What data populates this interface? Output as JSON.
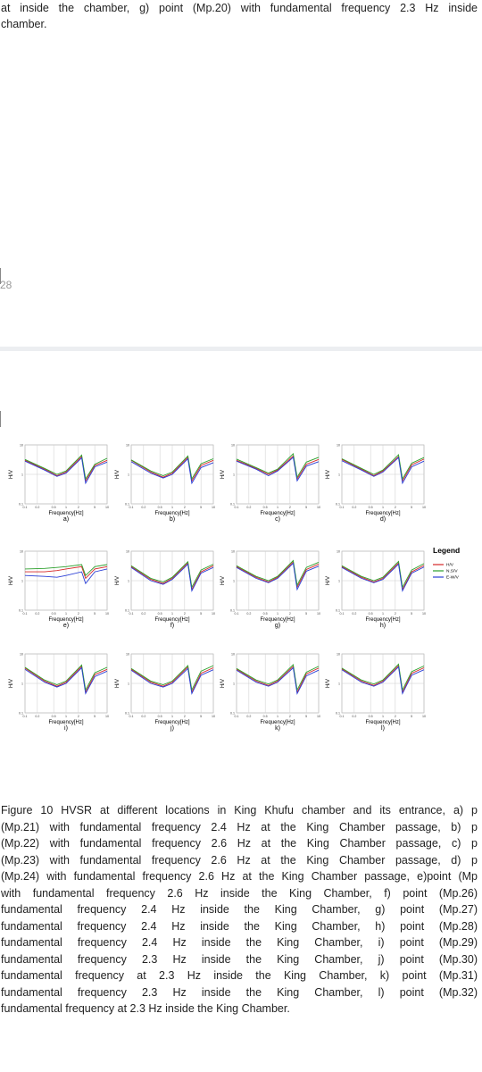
{
  "top_text": [
    "at inside the chamber, g) point (Mp.20) with fundamental frequency 2.3 Hz inside",
    "chamber."
  ],
  "page_number": "28",
  "figure": {
    "x_label": "Frequency[Hz]",
    "y_label": "H/V",
    "log_scale": true,
    "x": [
      0.1,
      0.3,
      0.6,
      1,
      2.4,
      3,
      5,
      10
    ],
    "xlim": [
      0.1,
      10
    ],
    "ylim": [
      0.1,
      10
    ],
    "xticks": [
      0.1,
      0.2,
      0.5,
      1,
      2,
      5,
      10
    ],
    "yticks": [
      0.1,
      1,
      10
    ],
    "legend": {
      "title": "Legend",
      "items": [
        {
          "name": "H/V",
          "color": "#d62728"
        },
        {
          "name": "N.S/V",
          "color": "#2ca02c"
        },
        {
          "name": "E-W/V",
          "color": "#2b3fd6"
        }
      ]
    },
    "panels": [
      {
        "label": "a)",
        "series": [
          [
            3,
            1.5,
            0.9,
            1.2,
            4,
            0.6,
            2,
            3
          ],
          [
            3.2,
            1.6,
            1,
            1.3,
            4.5,
            0.7,
            2.2,
            3.5
          ],
          [
            2.8,
            1.4,
            0.85,
            1.1,
            3.6,
            0.5,
            1.8,
            2.6
          ]
        ]
      },
      {
        "label": "b)",
        "series": [
          [
            3,
            1.2,
            0.8,
            1.1,
            3.8,
            0.6,
            2,
            3
          ],
          [
            3.1,
            1.3,
            0.9,
            1.2,
            4.2,
            0.7,
            2.3,
            3.4
          ],
          [
            2.7,
            1.1,
            0.75,
            1,
            3.4,
            0.5,
            1.7,
            2.5
          ]
        ]
      },
      {
        "label": "c)",
        "series": [
          [
            3,
            1.6,
            1,
            1.4,
            4.2,
            0.7,
            2.2,
            3.2
          ],
          [
            3.3,
            1.7,
            1.1,
            1.5,
            5,
            0.8,
            2.6,
            3.8
          ],
          [
            2.8,
            1.5,
            0.9,
            1.3,
            3.8,
            0.6,
            1.9,
            2.7
          ]
        ]
      },
      {
        "label": "d)",
        "series": [
          [
            3.2,
            1.5,
            0.9,
            1.3,
            4,
            0.6,
            2.1,
            3.3
          ],
          [
            3.4,
            1.6,
            1,
            1.4,
            4.6,
            0.7,
            2.4,
            3.7
          ],
          [
            2.9,
            1.4,
            0.85,
            1.2,
            3.7,
            0.5,
            1.8,
            2.8
          ]
        ]
      },
      {
        "label": "e)",
        "series": [
          [
            2,
            2,
            2.2,
            2.5,
            3,
            1.2,
            2.5,
            3
          ],
          [
            2.5,
            2.6,
            2.8,
            3,
            3.5,
            1.5,
            3,
            3.5
          ],
          [
            1.5,
            1.4,
            1.3,
            1.5,
            2,
            0.8,
            2,
            2.5
          ]
        ]
      },
      {
        "label": "f)",
        "series": [
          [
            3,
            1.1,
            0.8,
            1.2,
            4,
            0.5,
            2,
            3.2
          ],
          [
            3.2,
            1.2,
            0.9,
            1.3,
            4.4,
            0.6,
            2.3,
            3.6
          ],
          [
            2.8,
            1,
            0.75,
            1.1,
            3.6,
            0.45,
            1.8,
            2.8
          ]
        ]
      },
      {
        "label": "g)",
        "series": [
          [
            3,
            1.3,
            0.9,
            1.3,
            4.3,
            0.6,
            2.4,
            3.6
          ],
          [
            3.2,
            1.4,
            1,
            1.4,
            4.8,
            0.7,
            2.8,
            4.2
          ],
          [
            2.8,
            1.2,
            0.85,
            1.2,
            3.9,
            0.5,
            2.1,
            3.1
          ]
        ]
      },
      {
        "label": "h)",
        "series": [
          [
            3,
            1.3,
            0.9,
            1.2,
            4,
            0.5,
            2,
            3.3
          ],
          [
            3.2,
            1.4,
            1,
            1.3,
            4.5,
            0.6,
            2.3,
            3.8
          ],
          [
            2.8,
            1.2,
            0.85,
            1.1,
            3.6,
            0.45,
            1.8,
            2.9
          ]
        ]
      },
      {
        "label": "i)",
        "series": [
          [
            3.3,
            1.2,
            0.8,
            1.1,
            3.8,
            0.5,
            2,
            3
          ],
          [
            3.5,
            1.3,
            0.9,
            1.2,
            4.2,
            0.6,
            2.3,
            3.5
          ],
          [
            3,
            1.1,
            0.75,
            1,
            3.4,
            0.45,
            1.7,
            2.6
          ]
        ]
      },
      {
        "label": "j)",
        "series": [
          [
            3,
            1.1,
            0.8,
            1.1,
            3.6,
            0.5,
            2.2,
            3.4
          ],
          [
            3.2,
            1.2,
            0.9,
            1.2,
            4,
            0.6,
            2.6,
            4
          ],
          [
            2.8,
            1,
            0.75,
            1,
            3.2,
            0.45,
            1.9,
            2.9
          ]
        ]
      },
      {
        "label": "k)",
        "series": [
          [
            3,
            1.2,
            0.85,
            1.2,
            3.8,
            0.5,
            2.1,
            3.3
          ],
          [
            3.2,
            1.3,
            0.95,
            1.3,
            4.3,
            0.6,
            2.4,
            3.8
          ],
          [
            2.8,
            1.1,
            0.8,
            1.1,
            3.4,
            0.45,
            1.8,
            2.8
          ]
        ]
      },
      {
        "label": "l)",
        "series": [
          [
            3.1,
            1.2,
            0.85,
            1.2,
            4,
            0.5,
            2.2,
            3.4
          ],
          [
            3.3,
            1.3,
            0.95,
            1.3,
            4.5,
            0.6,
            2.5,
            3.9
          ],
          [
            2.9,
            1.1,
            0.8,
            1.1,
            3.6,
            0.45,
            1.9,
            2.9
          ]
        ]
      }
    ]
  },
  "caption": [
    "Figure 10 HVSR at different locations in King Khufu chamber and its entrance,  a) p",
    "(Mp.21) with fundamental frequency  2.4 Hz at the King Chamber passage, b) p",
    "(Mp.22) with fundamental frequency 2.6 Hz at the King Chamber passage, c) p",
    "(Mp.23) with fundamental frequency 2.6 Hz at the King Chamber passage, d) p",
    "(Mp.24) with fundamental frequency 2.6 Hz at the King Chamber passage, e)point (Mp",
    "with fundamental frequency  2.6 Hz inside the King Chamber,  f) point (Mp.26)",
    "fundamental frequency   2.4 Hz inside the King Chamber,  g) point  (Mp.27)",
    "fundamental frequency  2.4 Hz  inside  the  King  Chamber,  h)  point  (Mp.28)",
    "fundamental frequency  2.4 Hz  inside  the  King  Chamber,  i)  point  (Mp.29)",
    "fundamental frequency    2.3 Hz inside the King Chamber,  j) point  (Mp.30)",
    "fundamental frequency at 2.3 Hz inside the King Chamber,  k) point  (Mp.31)",
    "fundamental frequency    2.3 Hz inside the King Chamber,  l) point  (Mp.32)",
    "fundamental frequency at 2.3 Hz inside the King Chamber."
  ]
}
